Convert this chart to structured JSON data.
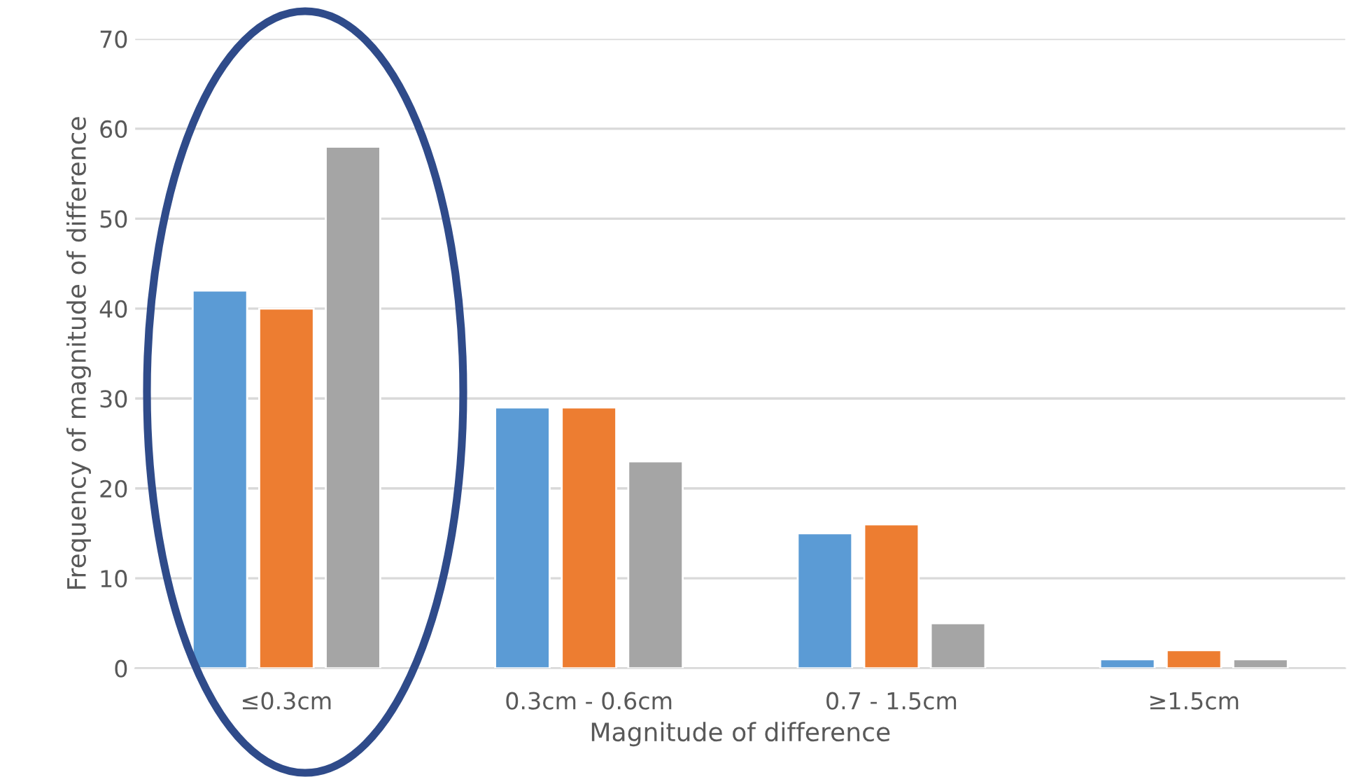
{
  "chart_data": {
    "type": "bar",
    "xlabel": "Magnitude of difference",
    "ylabel": "Frequency of magnitude of difference",
    "categories": [
      "≤0.3cm",
      "0.3cm - 0.6cm",
      "0.7 - 1.5cm",
      "≥1.5cm"
    ],
    "series": [
      {
        "color": "#5b9bd5",
        "values": [
          42,
          29,
          15,
          1
        ]
      },
      {
        "color": "#ed7d31",
        "values": [
          40,
          29,
          16,
          2
        ]
      },
      {
        "color": "#a5a5a5",
        "values": [
          58,
          23,
          5,
          1
        ]
      }
    ],
    "ylim": [
      0,
      70
    ],
    "yticks": [
      0,
      10,
      20,
      30,
      40,
      50,
      60,
      70
    ],
    "grid": "y",
    "legend": false
  }
}
